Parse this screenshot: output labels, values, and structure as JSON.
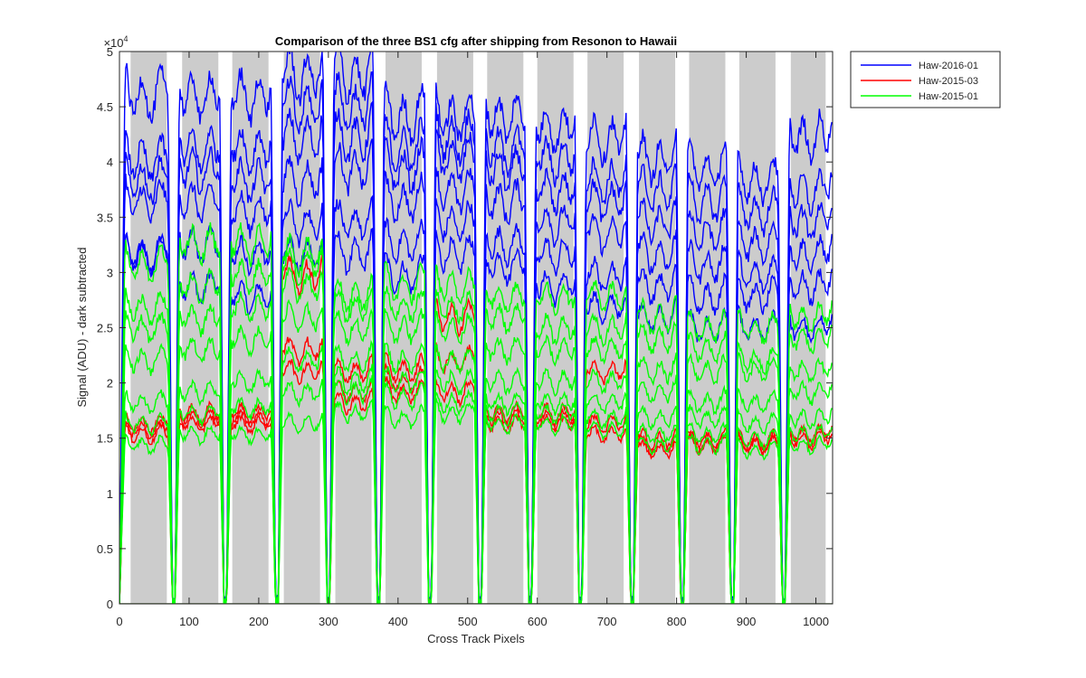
{
  "chart_data": {
    "type": "line",
    "title": "Comparison of the three BS1 cfg after shipping from Resonon to Hawaii",
    "xlabel": "Cross Track Pixels",
    "ylabel": "Signal (ADU) - dark subtracted",
    "xlim": [
      0,
      1024
    ],
    "ylim": [
      0,
      50000
    ],
    "x_ticks": [
      0,
      100,
      200,
      300,
      400,
      500,
      600,
      700,
      800,
      900,
      1000
    ],
    "y_ticks": [
      0,
      5000,
      10000,
      15000,
      20000,
      25000,
      30000,
      35000,
      40000,
      45000,
      50000
    ],
    "y_tick_labels": [
      "0",
      "0.5",
      "1",
      "1.5",
      "2",
      "2.5",
      "3",
      "3.5",
      "4",
      "4.5",
      "5"
    ],
    "y_exponent": "×10",
    "y_exponent_power": "4",
    "grid": false,
    "legend_position": "outside-top-right",
    "shaded_bands": [
      [
        16,
        68
      ],
      [
        90,
        142
      ],
      [
        162,
        214
      ],
      [
        236,
        288
      ],
      [
        310,
        362
      ],
      [
        382,
        434
      ],
      [
        456,
        508
      ],
      [
        528,
        580
      ],
      [
        600,
        652
      ],
      [
        672,
        724
      ],
      [
        746,
        798
      ],
      [
        818,
        870
      ],
      [
        890,
        942
      ],
      [
        964,
        1014
      ]
    ],
    "shade_color": "#cccccc",
    "dips": [
      78,
      152,
      226,
      300,
      372,
      446,
      518,
      590,
      662,
      736,
      808,
      880,
      954
    ],
    "series": [
      {
        "name": "Haw-2016-01",
        "color": "#0000ff",
        "curves": [
          {
            "levels": [
              33000,
              30000,
              29000,
              33000,
              33000,
              31000,
              33000,
              32000,
              30000,
              28000,
              27000,
              26000,
              26000,
              26000
            ]
          },
          {
            "levels": [
              33000,
              34000,
              33000,
              36000,
              36000,
              34000,
              36000,
              34000,
              33000,
              31000,
              30000,
              29000,
              29000,
              30000
            ]
          },
          {
            "levels": [
              38000,
              38000,
              37000,
              40000,
              41000,
              38000,
              39000,
              38000,
              36000,
              35000,
              33000,
              32000,
              31000,
              33000
            ]
          },
          {
            "levels": [
              40000,
              41000,
              40000,
              44000,
              44000,
              41000,
              42000,
              41000,
              39000,
              38000,
              36000,
              35000,
              34000,
              36000
            ]
          },
          {
            "levels": [
              42000,
              43000,
              43000,
              47000,
              47000,
              43000,
              44000,
              43000,
              42000,
              40000,
              39000,
              38000,
              37000,
              39000
            ]
          },
          {
            "levels": [
              48000,
              48000,
              48000,
              50000,
              50000,
              46000,
              46000,
              46000,
              45000,
              44000,
              42000,
              41000,
              40000,
              44000
            ]
          }
        ]
      },
      {
        "name": "Haw-2015-03",
        "color": "#ff0000",
        "curves": [
          {
            "levels": [
              16000,
              17000,
              17000,
              22000,
              19000,
              20000,
              20000,
              17000,
              17000,
              16000,
              14500,
              15000,
              15000,
              15500
            ]
          },
          {
            "levels": [
              16500,
              17500,
              17500,
              24000,
              20000,
              21000,
              23000,
              17500,
              17500,
              17000,
              15000,
              15000,
              15000,
              16000
            ]
          },
          {
            "levels": [
              17000,
              18000,
              18000,
              31000,
              22000,
              22000,
              27000,
              18000,
              18000,
              22000,
              15500,
              15500,
              15500,
              16000
            ]
          }
        ]
      },
      {
        "name": "Haw-2015-01",
        "color": "#00ff00",
        "curves": [
          {
            "levels": [
              15000,
              16000,
              16000,
              17000,
              18000,
              17500,
              18000,
              17000,
              17000,
              16500,
              15000,
              15000,
              14500,
              15000
            ]
          },
          {
            "levels": [
              17000,
              18000,
              18500,
              20000,
              20000,
              19500,
              19000,
              18000,
              18000,
              17500,
              16000,
              16000,
              15500,
              16000
            ]
          },
          {
            "levels": [
              19000,
              20000,
              21000,
              23000,
              21000,
              21000,
              21000,
              19000,
              19000,
              19000,
              17500,
              17500,
              17000,
              17500
            ]
          },
          {
            "levels": [
              23000,
              24000,
              25000,
              27000,
              23000,
              23000,
              23000,
              21000,
              21000,
              21000,
              20000,
              19000,
              19000,
              20000
            ]
          },
          {
            "levels": [
              26000,
              27000,
              28000,
              30000,
              26000,
              26000,
              26000,
              24000,
              24000,
              24000,
              22000,
              22000,
              22000,
              22000
            ]
          },
          {
            "levels": [
              28000,
              30000,
              31000,
              32000,
              28000,
              28000,
              28000,
              27000,
              26000,
              26000,
              25000,
              24000,
              23000,
              25000
            ]
          },
          {
            "levels": [
              32000,
              34000,
              34000,
              33000,
              29000,
              30000,
              30000,
              29000,
              29000,
              29000,
              27000,
              26000,
              26000,
              27000
            ]
          }
        ]
      }
    ]
  }
}
